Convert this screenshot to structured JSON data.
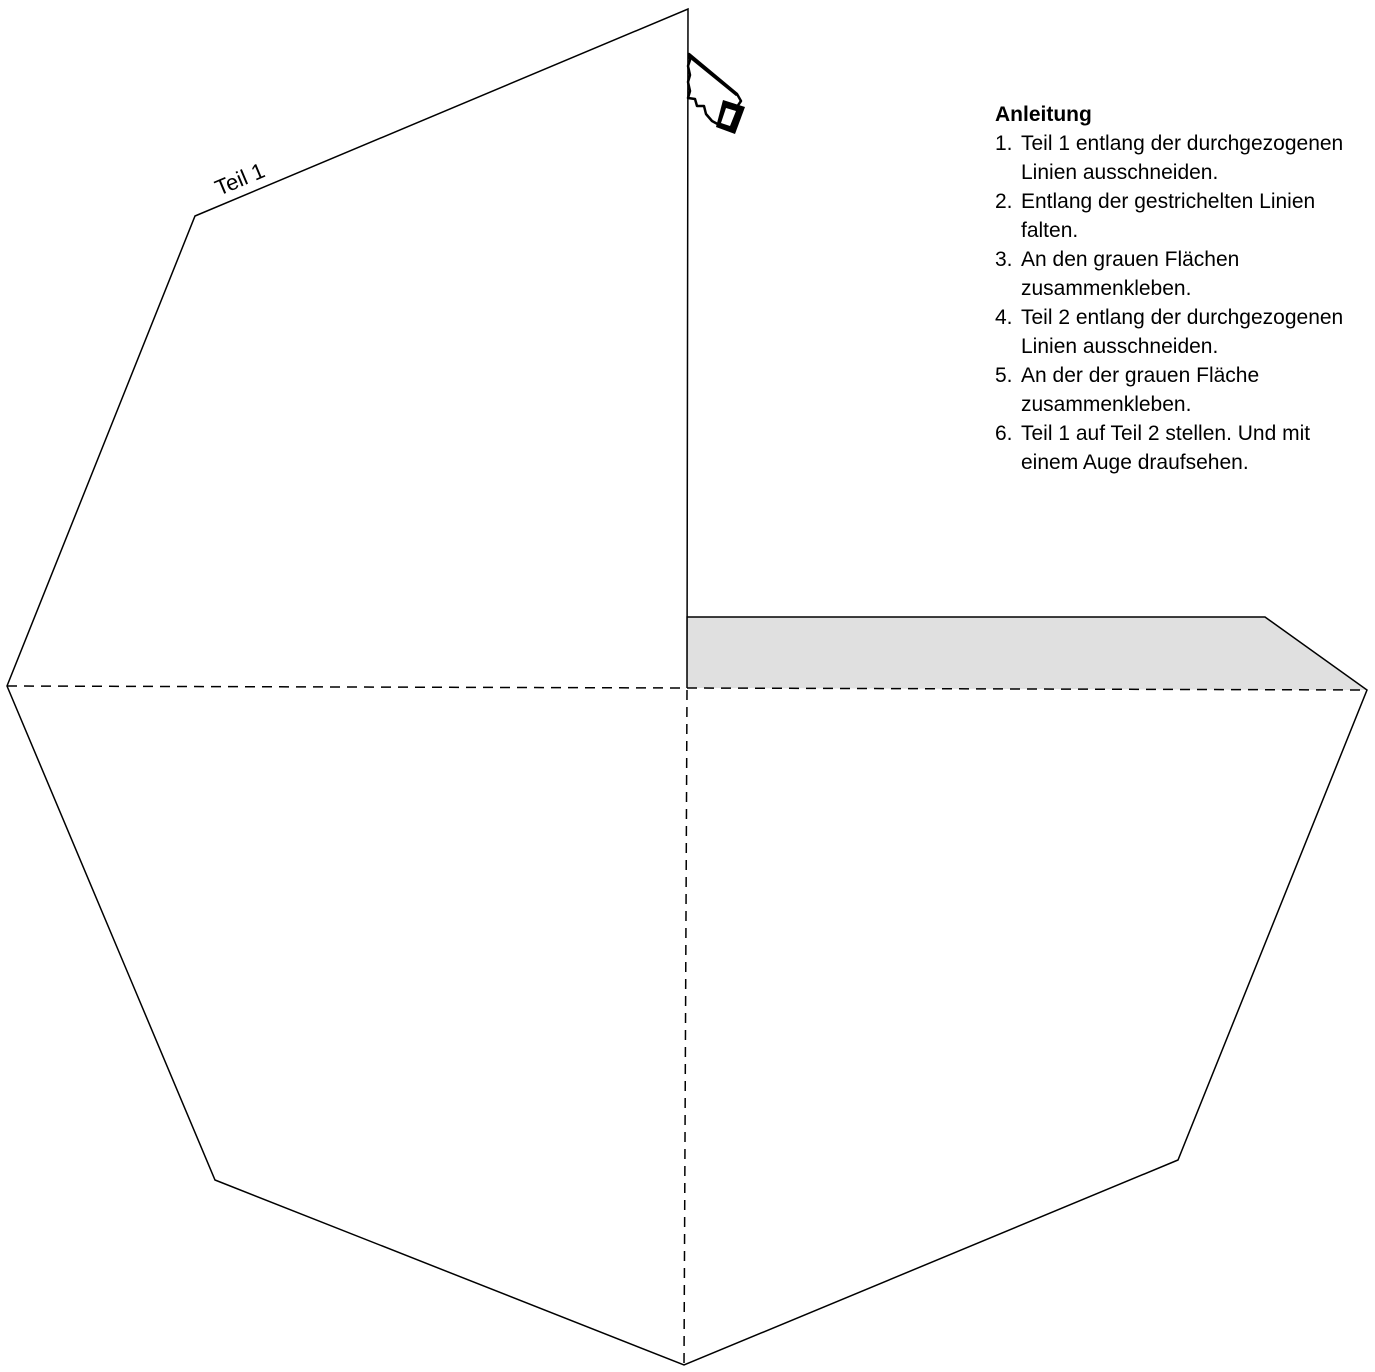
{
  "part_label": "Teil 1",
  "colors": {
    "glue_area": "#e0e0e0",
    "cut_line": "#000000",
    "fold_line": "#000000",
    "paper": "#ffffff"
  },
  "icons": {
    "cut_marker": "saw-icon"
  },
  "instructions": {
    "title": "Anleitung",
    "steps": [
      {
        "num": "1.",
        "text": "Teil 1 entlang der durchgezogenen Linien ausschneiden."
      },
      {
        "num": "2.",
        "text": "Entlang der gestrichelten Linien falten."
      },
      {
        "num": "3.",
        "text": "An den grauen Flächen zusammenkleben."
      },
      {
        "num": "4.",
        "text": "Teil 2 entlang der durchgezogenen Linien ausschneiden."
      },
      {
        "num": "5.",
        "text": "An der der grauen Fläche zusammenkleben."
      },
      {
        "num": "6.",
        "text": "Teil 1 auf Teil 2 stellen. Und mit einem Auge draufsehen."
      }
    ]
  }
}
